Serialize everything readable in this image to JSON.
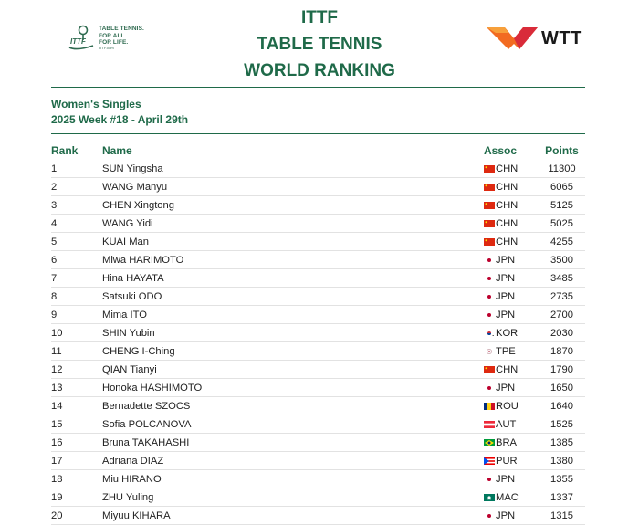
{
  "header": {
    "title_lines": [
      "ITTF",
      "TABLE TENNIS",
      "WORLD RANKING"
    ],
    "ittf_tagline": [
      "TABLE TENNIS.",
      "FOR ALL.",
      "FOR LIFE."
    ],
    "ittf_url": "ITTF.com",
    "wtt_logo_text": "WTT"
  },
  "ranking": {
    "category": "Women's Singles",
    "week": "2025 Week #18 - April 29th"
  },
  "table": {
    "columns": [
      "Rank",
      "Name",
      "Assoc",
      "Points"
    ],
    "rows": [
      {
        "rank": "1",
        "name": "SUN Yingsha",
        "assoc": "CHN",
        "points": "11300"
      },
      {
        "rank": "2",
        "name": "WANG Manyu",
        "assoc": "CHN",
        "points": "6065"
      },
      {
        "rank": "3",
        "name": "CHEN Xingtong",
        "assoc": "CHN",
        "points": "5125"
      },
      {
        "rank": "4",
        "name": "WANG Yidi",
        "assoc": "CHN",
        "points": "5025"
      },
      {
        "rank": "5",
        "name": "KUAI Man",
        "assoc": "CHN",
        "points": "4255"
      },
      {
        "rank": "6",
        "name": "Miwa HARIMOTO",
        "assoc": "JPN",
        "points": "3500"
      },
      {
        "rank": "7",
        "name": "Hina HAYATA",
        "assoc": "JPN",
        "points": "3485"
      },
      {
        "rank": "8",
        "name": "Satsuki ODO",
        "assoc": "JPN",
        "points": "2735"
      },
      {
        "rank": "9",
        "name": "Mima ITO",
        "assoc": "JPN",
        "points": "2700"
      },
      {
        "rank": "10",
        "name": "SHIN Yubin",
        "assoc": "KOR",
        "points": "2030"
      },
      {
        "rank": "11",
        "name": "CHENG I-Ching",
        "assoc": "TPE",
        "points": "1870"
      },
      {
        "rank": "12",
        "name": "QIAN Tianyi",
        "assoc": "CHN",
        "points": "1790"
      },
      {
        "rank": "13",
        "name": "Honoka HASHIMOTO",
        "assoc": "JPN",
        "points": "1650"
      },
      {
        "rank": "14",
        "name": "Bernadette SZOCS",
        "assoc": "ROU",
        "points": "1640"
      },
      {
        "rank": "15",
        "name": "Sofia POLCANOVA",
        "assoc": "AUT",
        "points": "1525"
      },
      {
        "rank": "16",
        "name": "Bruna TAKAHASHI",
        "assoc": "BRA",
        "points": "1385"
      },
      {
        "rank": "17",
        "name": "Adriana DIAZ",
        "assoc": "PUR",
        "points": "1380"
      },
      {
        "rank": "18",
        "name": "Miu HIRANO",
        "assoc": "JPN",
        "points": "1355"
      },
      {
        "rank": "19",
        "name": "ZHU Yuling",
        "assoc": "MAC",
        "points": "1337"
      },
      {
        "rank": "20",
        "name": "Miyuu KIHARA",
        "assoc": "JPN",
        "points": "1315"
      }
    ]
  },
  "colors": {
    "brand_green": "#1f6a49",
    "wtt_orange": "#f26b21",
    "wtt_red": "#d92b3a"
  }
}
